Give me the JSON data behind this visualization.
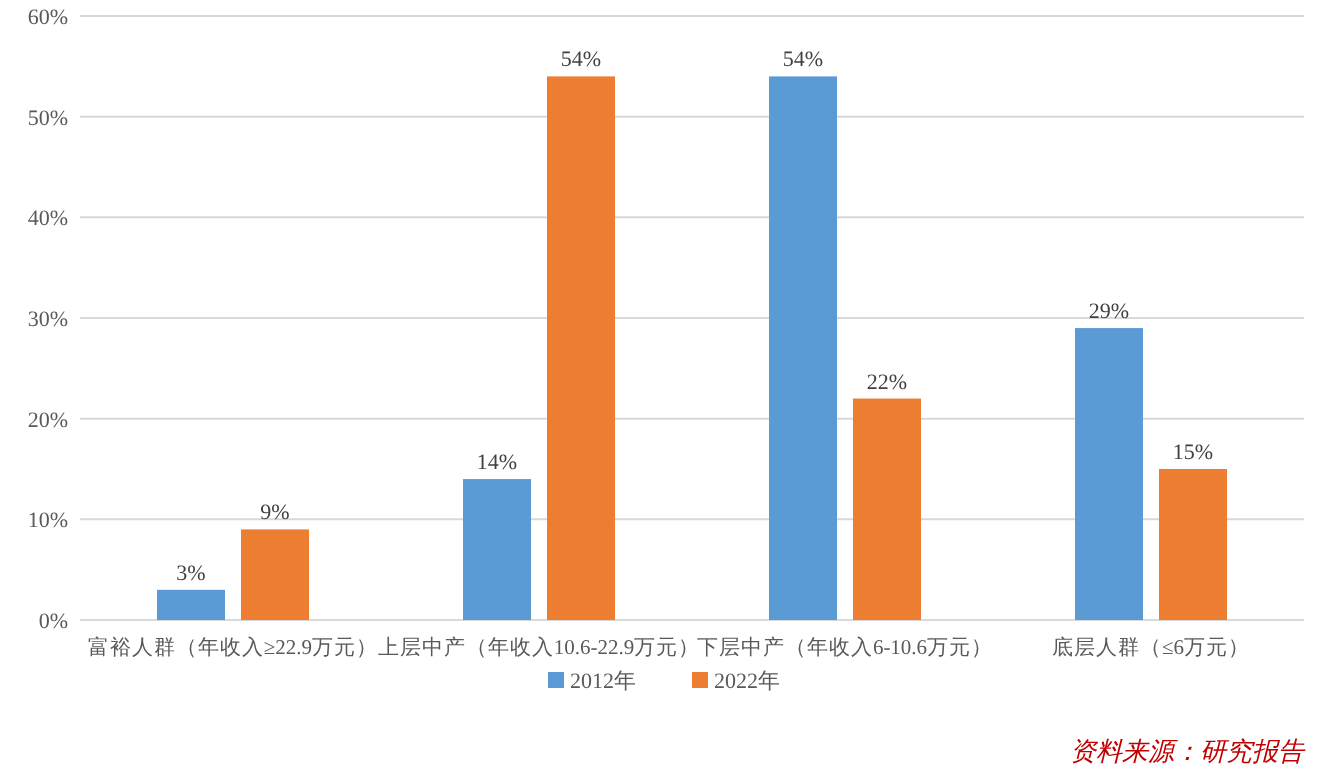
{
  "chart_data": {
    "type": "bar",
    "categories": [
      "富裕人群（年收入≥22.9万元）",
      "上层中产（年收入10.6-22.9万元）",
      "下层中产（年收入6-10.6万元）",
      "底层人群（≤6万元）"
    ],
    "series": [
      {
        "name": "2012年",
        "color": "#5b9bd5",
        "values": [
          3,
          14,
          54,
          29
        ],
        "value_labels": [
          "3%",
          "14%",
          "54%",
          "29%"
        ]
      },
      {
        "name": "2022年",
        "color": "#ed7d31",
        "values": [
          9,
          54,
          22,
          15
        ],
        "value_labels": [
          "9%",
          "54%",
          "22%",
          "15%"
        ]
      }
    ],
    "ylim": [
      0,
      60
    ],
    "yticks": [
      {
        "value": 0,
        "label": "0%"
      },
      {
        "value": 10,
        "label": "10%"
      },
      {
        "value": 20,
        "label": "20%"
      },
      {
        "value": 30,
        "label": "30%"
      },
      {
        "value": 40,
        "label": "40%"
      },
      {
        "value": 50,
        "label": "50%"
      },
      {
        "value": 60,
        "label": "60%"
      }
    ],
    "grid": "y",
    "legend": "bottom",
    "annotations": [
      "资料来源：研究报告"
    ]
  }
}
